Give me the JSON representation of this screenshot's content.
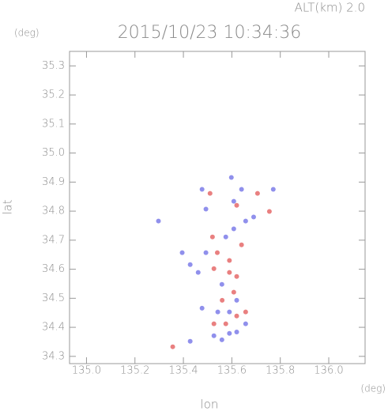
{
  "chart_data": {
    "type": "scatter",
    "title": "2015/10/23 10:34:36",
    "subtitle": "ALT(km) 2.0",
    "y_unit": "(deg)",
    "x_unit": "(deg)",
    "x_label": "lon",
    "y_label": "lat",
    "xlim": [
      134.93,
      136.15
    ],
    "ylim": [
      34.275,
      35.35
    ],
    "xticks": [
      {
        "value": 135,
        "label": "135.0"
      },
      135.2,
      135.4,
      135.6,
      135.8,
      {
        "value": 136,
        "label": "136.0"
      }
    ],
    "yticks": [
      34.3,
      34.4,
      34.5,
      34.6,
      34.7,
      34.8,
      34.9,
      {
        "value": 35,
        "label": "35.0"
      },
      35.1,
      35.2,
      35.3
    ],
    "series": [
      {
        "color": "#e25555",
        "x": [
          135.356,
          135.52,
          135.54,
          135.59,
          135.62,
          135.56,
          135.62,
          135.575,
          135.526,
          135.755,
          135.706,
          135.62,
          135.59,
          135.526,
          135.64,
          135.608,
          135.657,
          135.51
        ],
        "y": [
          34.333,
          34.711,
          34.657,
          34.589,
          34.575,
          34.493,
          34.439,
          34.412,
          34.412,
          34.799,
          34.861,
          34.82,
          34.63,
          34.602,
          34.684,
          34.521,
          34.453,
          34.861
        ]
      },
      {
        "color": "#6b6be6",
        "x": [
          135.428,
          135.526,
          135.59,
          135.477,
          135.461,
          135.493,
          135.575,
          135.608,
          135.657,
          135.69,
          135.608,
          135.493,
          135.477,
          135.598,
          135.64,
          135.771,
          135.297,
          135.395,
          135.428,
          135.559,
          135.62,
          135.657,
          135.542,
          135.59,
          135.559,
          135.62
        ],
        "y": [
          34.352,
          34.371,
          34.379,
          34.466,
          34.589,
          34.657,
          34.711,
          34.739,
          34.766,
          34.78,
          34.834,
          34.807,
          34.875,
          34.916,
          34.875,
          34.875,
          34.766,
          34.657,
          34.616,
          34.548,
          34.493,
          34.412,
          34.453,
          34.453,
          34.357,
          34.384
        ]
      }
    ]
  }
}
